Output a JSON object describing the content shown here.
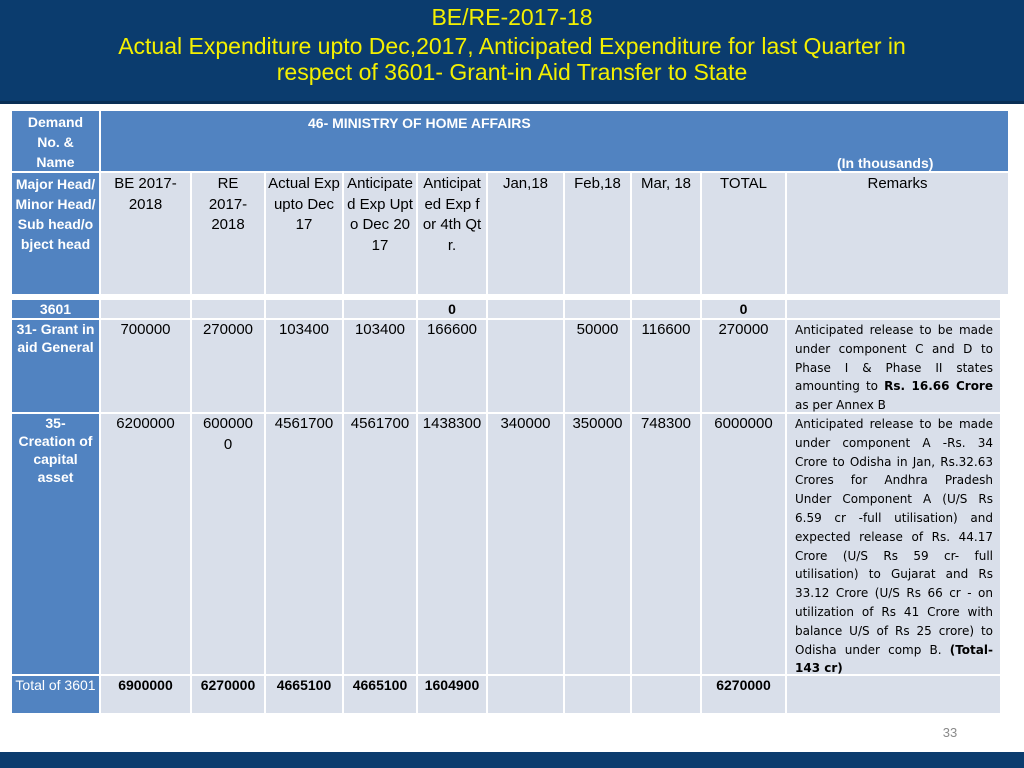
{
  "title": {
    "line1": "BE/RE-2017-18",
    "line2": "Actual Expenditure upto Dec,2017, Anticipated Expenditure for last Quarter in",
    "line3": "respect of 3601- Grant-in Aid Transfer to State"
  },
  "table": {
    "demand_header": "Demand No. & Name",
    "ministry": "46- MINISTRY OF HOME AFFAIRS",
    "units": "(In thousands)",
    "major_header": "Major Head/Minor Head/Sub head/object head",
    "columns": {
      "be": "BE 2017-2018",
      "re": "RE 2017-2018",
      "actual": "Actual Exp upto Dec 17",
      "anticipated_upto": "Anticipated Exp Upto Dec 2017",
      "anticipated_q4": "Anticipated Exp for 4th Qtr.",
      "jan": "Jan,18",
      "feb": "Feb,18",
      "mar": "Mar, 18",
      "total": "TOTAL",
      "remarks": "Remarks"
    },
    "row_3601": {
      "head": "3601",
      "anticipated_q4": "0",
      "total": "0"
    },
    "row_31": {
      "head": "31- Grant in aid General",
      "be": "700000",
      "re": "270000",
      "actual": "103400",
      "anticipated_upto": "103400",
      "anticipated_q4": "166600",
      "jan": "",
      "feb": "50000",
      "mar": "116600",
      "total": "270000",
      "remark_a": "Anticipated release to be made under component C and D to Phase I & Phase II states amounting to",
      "remark_b": "Rs. 16.66 Crore",
      "remark_c": "as per Annex B"
    },
    "row_35": {
      "head": "35- Creation of capital asset",
      "be": "6200000",
      "re": "6000000",
      "actual": "4561700",
      "anticipated_upto": "4561700",
      "anticipated_q4": "1438300",
      "jan": "340000",
      "feb": "350000",
      "mar": "748300",
      "total": "6000000",
      "remark_a": "Anticipated release to be made under component A -Rs. 34 Crore to Odisha in Jan, Rs.32.63 Crores for Andhra Pradesh Under Component A (U/S Rs 6.59 cr -full utilisation) and expected release of Rs. 44.17 Crore (U/S Rs 59 cr- full utilisation) to Gujarat and Rs 33.12 Crore (U/S Rs 66 cr - on utilization of Rs 41 Crore with balance U/S of Rs 25 crore) to Odisha under comp B.",
      "remark_b": "(Total-143 cr)"
    },
    "row_total": {
      "head": "Total of 3601",
      "be": "6900000",
      "re": "6270000",
      "actual": "4665100",
      "anticipated_upto": "4665100",
      "anticipated_q4": "1604900",
      "total": "6270000"
    }
  },
  "page_number": "33"
}
